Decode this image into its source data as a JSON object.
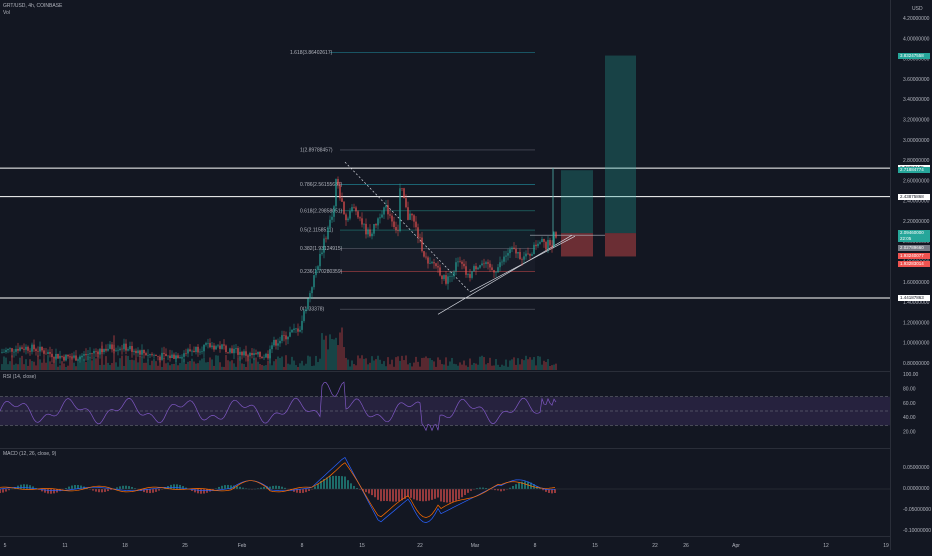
{
  "header": {
    "symbol_line": "GRT/USD, 4h, COINBASE",
    "vol_label": "Vol",
    "rsi_label": "RSI (14, close)",
    "macd_label": "MACD (12, 26, close, 9)"
  },
  "price_axis": {
    "currency": "USD",
    "ticks": [
      "4.20000000",
      "4.00000000",
      "3.80000000",
      "3.60000000",
      "3.40000000",
      "3.20000000",
      "3.00000000",
      "2.80000000",
      "2.60000000",
      "2.40000000",
      "2.20000000",
      "2.00000000",
      "1.80000000",
      "1.60000000",
      "1.40000000",
      "1.20000000",
      "1.00000000",
      "0.80000000"
    ],
    "tick_values": [
      4.2,
      4.0,
      3.8,
      3.6,
      3.4,
      3.2,
      3.0,
      2.8,
      2.6,
      2.4,
      2.2,
      2.0,
      1.8,
      1.6,
      1.4,
      1.2,
      1.0,
      0.8
    ],
    "tags": [
      {
        "text": "3.83247558",
        "value": 3.83,
        "color": "#26a69a"
      },
      {
        "text": "2.72358175",
        "value": 2.72,
        "color": "#ffffff"
      },
      {
        "text": "2.71884774",
        "value": 2.7,
        "color": "#26a69a"
      },
      {
        "text": "2.43875868",
        "value": 2.44,
        "color": "#ffffff"
      },
      {
        "text": "2.09460000",
        "value": 2.08,
        "color": "#26a69a"
      },
      {
        "text": "2.03624231",
        "value": 2.02,
        "color": "#787b86"
      },
      {
        "text": "2.02789660",
        "value": 1.93,
        "color": "#787b86"
      },
      {
        "text": "1.93240077",
        "value": 1.85,
        "color": "#ef5350"
      },
      {
        "text": "1.93283014",
        "value": 1.78,
        "color": "#ef5350"
      },
      {
        "text": "1.44187863",
        "value": 1.44,
        "color": "#ffffff"
      }
    ],
    "countdown_text": "22:05"
  },
  "rsi_axis": {
    "ticks": [
      "100.00",
      "80.00",
      "60.00",
      "40.00",
      "20.00"
    ],
    "values": [
      100,
      80,
      60,
      40,
      20
    ]
  },
  "macd_axis": {
    "ticks": [
      "0.05000000",
      "0.00000000",
      "-0.05000000",
      "-0.10000000"
    ],
    "values": [
      0.05,
      0,
      -0.05,
      -0.1
    ]
  },
  "time_axis": {
    "labels": [
      "5",
      "11",
      "18",
      "25",
      "Feb",
      "8",
      "15",
      "22",
      "Mar",
      "8",
      "15",
      "22",
      "26",
      "Apr",
      "12",
      "19"
    ]
  },
  "fib_levels": [
    {
      "label": "1.618(3.86402617)",
      "value": 3.86,
      "color": "#26c6da"
    },
    {
      "label": "1(2.89788457)",
      "value": 2.9,
      "color": "#787b86"
    },
    {
      "label": "0.786(2.56155687)",
      "value": 2.56,
      "color": "#26c6da"
    },
    {
      "label": "0.618(2.29858051)",
      "value": 2.3,
      "color": "#26a69a"
    },
    {
      "label": "0.5(2.1158511)",
      "value": 2.11,
      "color": "#26a69a"
    },
    {
      "label": "0.382(1.93124915)",
      "value": 1.93,
      "color": "#787b86"
    },
    {
      "label": "0.236(1.70280359)",
      "value": 1.7,
      "color": "#ef5350"
    },
    {
      "label": "0(1.33378)",
      "value": 1.33,
      "color": "#787b86"
    }
  ],
  "horizontal_levels": [
    2.72,
    2.44,
    1.44
  ],
  "colors": {
    "bg": "#131722",
    "up": "#26a69a",
    "down": "#ef5350",
    "rsi": "#7e57c2",
    "macd": "#2962ff",
    "signal": "#ff6d00"
  }
}
